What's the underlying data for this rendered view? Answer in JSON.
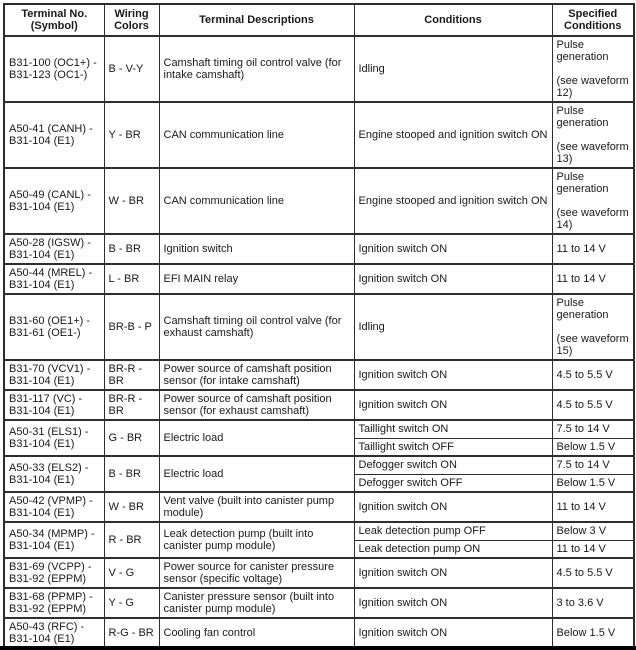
{
  "colors": {
    "background": "#ffffff",
    "table_border": "#2b2b2b",
    "text": "#1a1a1a",
    "bottom_bar": "#000000"
  },
  "table": {
    "headers": [
      "Terminal No.\n(Symbol)",
      "Wiring\nColors",
      "Terminal Descriptions",
      "Conditions",
      "Specified\nConditions"
    ],
    "rows": [
      {
        "terminal": "B31-100 (OC1+) -\nB31-123 (OC1-)",
        "wiring": "B - V-Y",
        "description": "Camshaft timing oil control valve (for intake camshaft)",
        "conditions": [
          {
            "condition": "Idling",
            "specified": "Pulse generation\n\n(see waveform 12)"
          }
        ]
      },
      {
        "terminal": "A50-41 (CANH) -\nB31-104 (E1)",
        "wiring": "Y - BR",
        "description": "CAN communication line",
        "conditions": [
          {
            "condition": "Engine stooped and ignition switch ON",
            "specified": "Pulse generation\n\n(see waveform 13)"
          }
        ]
      },
      {
        "terminal": "A50-49 (CANL) -\nB31-104 (E1)",
        "wiring": "W - BR",
        "description": "CAN communication line",
        "conditions": [
          {
            "condition": "Engine stooped and ignition switch ON",
            "specified": "Pulse generation\n\n(see waveform 14)"
          }
        ]
      },
      {
        "terminal": "A50-28 (IGSW) -\nB31-104 (E1)",
        "wiring": "B - BR",
        "description": "Ignition switch",
        "conditions": [
          {
            "condition": "Ignition switch ON",
            "specified": "11 to 14 V"
          }
        ]
      },
      {
        "terminal": "A50-44 (MREL) -\nB31-104 (E1)",
        "wiring": "L - BR",
        "description": "EFI MAIN relay",
        "conditions": [
          {
            "condition": "Ignition switch ON",
            "specified": "11 to 14 V"
          }
        ]
      },
      {
        "terminal": "B31-60 (OE1+) -\nB31-61 (OE1-)",
        "wiring": "BR-B - P",
        "description": "Camshaft timing oil control valve (for exhaust camshaft)",
        "conditions": [
          {
            "condition": "Idling",
            "specified": "Pulse generation\n\n(see waveform 15)"
          }
        ]
      },
      {
        "terminal": "B31-70 (VCV1) -\nB31-104 (E1)",
        "wiring": "BR-R -\nBR",
        "description": "Power source of camshaft position sensor (for intake camshaft)",
        "conditions": [
          {
            "condition": "Ignition switch ON",
            "specified": "4.5 to 5.5 V"
          }
        ]
      },
      {
        "terminal": "B31-117 (VC) -\nB31-104 (E1)",
        "wiring": "BR-R -\nBR",
        "description": "Power source of camshaft position sensor (for exhaust camshaft)",
        "conditions": [
          {
            "condition": "Ignition switch ON",
            "specified": "4.5 to 5.5 V"
          }
        ]
      },
      {
        "terminal": "A50-31 (ELS1) -\nB31-104 (E1)",
        "wiring": "G - BR",
        "description": "Electric load",
        "conditions": [
          {
            "condition": "Taillight switch ON",
            "specified": "7.5 to 14 V"
          },
          {
            "condition": "Taillight switch OFF",
            "specified": "Below 1.5 V"
          }
        ]
      },
      {
        "terminal": "A50-33 (ELS2) -\nB31-104 (E1)",
        "wiring": "B - BR",
        "description": "Electric load",
        "conditions": [
          {
            "condition": "Defogger switch ON",
            "specified": "7.5 to 14 V"
          },
          {
            "condition": "Defogger switch OFF",
            "specified": "Below 1.5 V"
          }
        ]
      },
      {
        "terminal": "A50-42 (VPMP) -\nB31-104 (E1)",
        "wiring": "W - BR",
        "description": "Vent valve (built into canister pump module)",
        "conditions": [
          {
            "condition": "Ignition switch ON",
            "specified": "11 to 14 V"
          }
        ]
      },
      {
        "terminal": "A50-34 (MPMP) -\nB31-104 (E1)",
        "wiring": "R - BR",
        "description": "Leak detection pump (built into canister pump module)",
        "conditions": [
          {
            "condition": "Leak detection pump OFF",
            "specified": "Below 3 V"
          },
          {
            "condition": "Leak detection pump ON",
            "specified": "11 to 14 V"
          }
        ]
      },
      {
        "terminal": "B31-69 (VCPP) -\nB31-92 (EPPM)",
        "wiring": "V - G",
        "description": "Power source for canister pressure sensor (specific voltage)",
        "conditions": [
          {
            "condition": "Ignition switch ON",
            "specified": "4.5 to 5.5 V"
          }
        ]
      },
      {
        "terminal": "B31-68 (PPMP) -\nB31-92 (EPPM)",
        "wiring": "Y - G",
        "description": "Canister pressure sensor (built into canister pump module)",
        "conditions": [
          {
            "condition": "Ignition switch ON",
            "specified": "3 to 3.6 V"
          }
        ]
      },
      {
        "terminal": "A50-43 (RFC) -\nB31-104 (E1)",
        "wiring": "R-G - BR",
        "description": "Cooling fan control",
        "conditions": [
          {
            "condition": "Ignition switch ON",
            "specified": "Below 1.5 V"
          }
        ]
      }
    ]
  }
}
